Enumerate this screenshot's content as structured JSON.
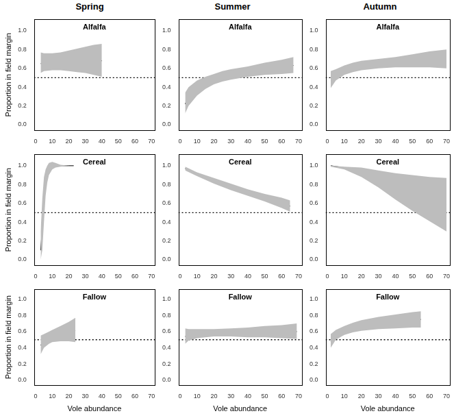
{
  "columns": [
    "Spring",
    "Summer",
    "Autumn"
  ],
  "chart_data": [
    {
      "type": "line",
      "title": "Alfalfa",
      "ylabel": "Proportion in field margin",
      "grid": false,
      "color": "#000000",
      "x": [
        3,
        5,
        10,
        15,
        20,
        25,
        30,
        35,
        40
      ],
      "values": [
        0.65,
        0.66,
        0.67,
        0.67,
        0.675,
        0.68,
        0.68,
        0.68,
        0.68
      ],
      "lower": [
        0.55,
        0.57,
        0.58,
        0.58,
        0.57,
        0.56,
        0.55,
        0.53,
        0.51
      ],
      "upper": [
        0.77,
        0.76,
        0.76,
        0.77,
        0.79,
        0.81,
        0.83,
        0.85,
        0.86
      ],
      "hline": 0.5,
      "xlim": [
        -1,
        72
      ],
      "ylim": [
        -0.06,
        1.12
      ],
      "xticks": [
        0,
        10,
        20,
        30,
        40,
        50,
        60,
        70
      ],
      "yticks": [
        {
          "value": 0,
          "label": "0.0"
        },
        {
          "value": 0.2,
          "label": "0.2"
        },
        {
          "value": 0.4,
          "label": "0.4"
        },
        {
          "value": 0.6,
          "label": "0.6"
        },
        {
          "value": 0.8,
          "label": "0.8"
        },
        {
          "value": 1,
          "label": "1.0"
        }
      ]
    },
    {
      "type": "line",
      "title": "Alfalfa",
      "grid": false,
      "color": "#000000",
      "x": [
        3,
        5,
        10,
        15,
        20,
        25,
        30,
        40,
        50,
        60,
        67
      ],
      "values": [
        0.22,
        0.3,
        0.39,
        0.44,
        0.48,
        0.51,
        0.53,
        0.56,
        0.59,
        0.61,
        0.63
      ],
      "lower": [
        0.12,
        0.2,
        0.31,
        0.38,
        0.43,
        0.46,
        0.48,
        0.51,
        0.53,
        0.54,
        0.55
      ],
      "upper": [
        0.34,
        0.4,
        0.47,
        0.51,
        0.54,
        0.57,
        0.59,
        0.62,
        0.66,
        0.69,
        0.72
      ],
      "hline": 0.5,
      "xlim": [
        -1,
        72
      ],
      "ylim": [
        -0.06,
        1.12
      ],
      "xticks": [
        0,
        10,
        20,
        30,
        40,
        50,
        60,
        70
      ],
      "yticks": [
        {
          "value": 0,
          "label": "0.0"
        },
        {
          "value": 0.2,
          "label": "0.2"
        },
        {
          "value": 0.4,
          "label": "0.4"
        },
        {
          "value": 0.6,
          "label": "0.6"
        },
        {
          "value": 0.8,
          "label": "0.8"
        },
        {
          "value": 1,
          "label": "1.0"
        }
      ]
    },
    {
      "type": "line",
      "title": "Alfalfa",
      "grid": false,
      "color": "#000000",
      "x": [
        2,
        5,
        10,
        15,
        20,
        30,
        40,
        50,
        60,
        70
      ],
      "values": [
        0.48,
        0.53,
        0.58,
        0.61,
        0.63,
        0.65,
        0.67,
        0.68,
        0.69,
        0.7
      ],
      "lower": [
        0.39,
        0.47,
        0.53,
        0.56,
        0.58,
        0.6,
        0.61,
        0.61,
        0.61,
        0.6
      ],
      "upper": [
        0.57,
        0.59,
        0.63,
        0.66,
        0.68,
        0.7,
        0.72,
        0.75,
        0.78,
        0.8
      ],
      "hline": 0.5,
      "xlim": [
        -1,
        72
      ],
      "ylim": [
        -0.06,
        1.12
      ],
      "xticks": [
        0,
        10,
        20,
        30,
        40,
        50,
        60,
        70
      ],
      "yticks": [
        {
          "value": 0,
          "label": "0.0"
        },
        {
          "value": 0.2,
          "label": "0.2"
        },
        {
          "value": 0.4,
          "label": "0.4"
        },
        {
          "value": 0.6,
          "label": "0.6"
        },
        {
          "value": 0.8,
          "label": "0.8"
        },
        {
          "value": 1,
          "label": "1.0"
        }
      ]
    },
    {
      "type": "line",
      "title": "Cereal",
      "ylabel": "Proportion in field margin",
      "grid": false,
      "color": "#000000",
      "x": [
        3,
        4,
        5,
        6,
        7,
        8,
        10,
        12,
        15,
        20,
        23
      ],
      "values": [
        0.1,
        0.35,
        0.65,
        0.82,
        0.9,
        0.95,
        0.98,
        0.99,
        1.0,
        1.0,
        1.0
      ],
      "lower": [
        0.0,
        0.1,
        0.4,
        0.68,
        0.82,
        0.9,
        0.96,
        0.98,
        0.99,
        1.0,
        1.0
      ],
      "upper": [
        0.3,
        0.65,
        0.88,
        0.96,
        1.0,
        1.03,
        1.04,
        1.03,
        1.01,
        1.0,
        1.0
      ],
      "hline": 0.5,
      "xlim": [
        -1,
        72
      ],
      "ylim": [
        -0.06,
        1.12
      ],
      "xticks": [
        0,
        10,
        20,
        30,
        40,
        50,
        60,
        70
      ],
      "yticks": [
        {
          "value": 0,
          "label": "0.0"
        },
        {
          "value": 0.2,
          "label": "0.2"
        },
        {
          "value": 0.4,
          "label": "0.4"
        },
        {
          "value": 0.6,
          "label": "0.6"
        },
        {
          "value": 0.8,
          "label": "0.8"
        },
        {
          "value": 1,
          "label": "1.0"
        }
      ]
    },
    {
      "type": "line",
      "title": "Cereal",
      "grid": false,
      "color": "#000000",
      "x": [
        3,
        10,
        20,
        30,
        40,
        50,
        60,
        65
      ],
      "values": [
        0.97,
        0.91,
        0.84,
        0.77,
        0.71,
        0.66,
        0.6,
        0.57
      ],
      "lower": [
        0.95,
        0.89,
        0.81,
        0.74,
        0.68,
        0.62,
        0.55,
        0.51
      ],
      "upper": [
        0.99,
        0.93,
        0.87,
        0.81,
        0.75,
        0.7,
        0.66,
        0.63
      ],
      "hline": 0.5,
      "xlim": [
        -1,
        72
      ],
      "ylim": [
        -0.06,
        1.12
      ],
      "xticks": [
        0,
        10,
        20,
        30,
        40,
        50,
        60,
        70
      ],
      "yticks": [
        {
          "value": 0,
          "label": "0.0"
        },
        {
          "value": 0.2,
          "label": "0.2"
        },
        {
          "value": 0.4,
          "label": "0.4"
        },
        {
          "value": 0.6,
          "label": "0.6"
        },
        {
          "value": 0.8,
          "label": "0.8"
        },
        {
          "value": 1,
          "label": "1.0"
        }
      ]
    },
    {
      "type": "line",
      "title": "Cereal",
      "grid": false,
      "color": "#000000",
      "x": [
        2,
        10,
        20,
        30,
        40,
        50,
        60,
        70
      ],
      "values": [
        1.0,
        0.98,
        0.93,
        0.86,
        0.78,
        0.71,
        0.64,
        0.59
      ],
      "lower": [
        0.99,
        0.96,
        0.88,
        0.77,
        0.64,
        0.52,
        0.41,
        0.3
      ],
      "upper": [
        1.0,
        0.99,
        0.98,
        0.95,
        0.92,
        0.9,
        0.88,
        0.87
      ],
      "hline": 0.5,
      "xlim": [
        -1,
        72
      ],
      "ylim": [
        -0.06,
        1.12
      ],
      "xticks": [
        0,
        10,
        20,
        30,
        40,
        50,
        60,
        70
      ],
      "yticks": [
        {
          "value": 0,
          "label": "0.0"
        },
        {
          "value": 0.2,
          "label": "0.2"
        },
        {
          "value": 0.4,
          "label": "0.4"
        },
        {
          "value": 0.6,
          "label": "0.6"
        },
        {
          "value": 0.8,
          "label": "0.8"
        },
        {
          "value": 1,
          "label": "1.0"
        }
      ]
    },
    {
      "type": "line",
      "title": "Fallow",
      "ylabel": "Proportion in field margin",
      "xlabel": "Vole abundance",
      "grid": false,
      "color": "#000000",
      "x": [
        3,
        5,
        8,
        10,
        15,
        20,
        24
      ],
      "values": [
        0.43,
        0.49,
        0.53,
        0.55,
        0.58,
        0.6,
        0.61
      ],
      "lower": [
        0.32,
        0.4,
        0.45,
        0.47,
        0.48,
        0.48,
        0.47
      ],
      "upper": [
        0.55,
        0.57,
        0.6,
        0.62,
        0.67,
        0.72,
        0.77
      ],
      "hline": 0.5,
      "xlim": [
        -1,
        72
      ],
      "ylim": [
        -0.06,
        1.12
      ],
      "xticks": [
        0,
        10,
        20,
        30,
        40,
        50,
        60,
        70
      ],
      "yticks": [
        {
          "value": 0,
          "label": "0.0"
        },
        {
          "value": 0.2,
          "label": "0.2"
        },
        {
          "value": 0.4,
          "label": "0.4"
        },
        {
          "value": 0.6,
          "label": "0.6"
        },
        {
          "value": 0.8,
          "label": "0.8"
        },
        {
          "value": 1,
          "label": "1.0"
        }
      ]
    },
    {
      "type": "line",
      "title": "Fallow",
      "xlabel": "Vole abundance",
      "grid": false,
      "color": "#000000",
      "x": [
        3,
        5,
        10,
        20,
        30,
        40,
        50,
        60,
        69
      ],
      "values": [
        0.54,
        0.56,
        0.57,
        0.58,
        0.59,
        0.59,
        0.6,
        0.6,
        0.6
      ],
      "lower": [
        0.45,
        0.49,
        0.52,
        0.54,
        0.54,
        0.53,
        0.53,
        0.52,
        0.51
      ],
      "upper": [
        0.64,
        0.63,
        0.63,
        0.63,
        0.64,
        0.65,
        0.67,
        0.68,
        0.7
      ],
      "hline": 0.5,
      "xlim": [
        -1,
        72
      ],
      "ylim": [
        -0.06,
        1.12
      ],
      "xticks": [
        0,
        10,
        20,
        30,
        40,
        50,
        60,
        70
      ],
      "yticks": [
        {
          "value": 0,
          "label": "0.0"
        },
        {
          "value": 0.2,
          "label": "0.2"
        },
        {
          "value": 0.4,
          "label": "0.4"
        },
        {
          "value": 0.6,
          "label": "0.6"
        },
        {
          "value": 0.8,
          "label": "0.8"
        },
        {
          "value": 1,
          "label": "1.0"
        }
      ]
    },
    {
      "type": "line",
      "title": "Fallow",
      "xlabel": "Vole abundance",
      "grid": false,
      "color": "#000000",
      "x": [
        2,
        5,
        10,
        15,
        20,
        30,
        40,
        50,
        55
      ],
      "values": [
        0.48,
        0.56,
        0.62,
        0.66,
        0.68,
        0.71,
        0.73,
        0.74,
        0.75
      ],
      "lower": [
        0.4,
        0.5,
        0.56,
        0.59,
        0.61,
        0.63,
        0.64,
        0.65,
        0.65
      ],
      "upper": [
        0.57,
        0.62,
        0.67,
        0.71,
        0.74,
        0.78,
        0.81,
        0.84,
        0.85
      ],
      "hline": 0.5,
      "xlim": [
        -1,
        72
      ],
      "ylim": [
        -0.06,
        1.12
      ],
      "xticks": [
        0,
        10,
        20,
        30,
        40,
        50,
        60,
        70
      ],
      "yticks": [
        {
          "value": 0,
          "label": "0.0"
        },
        {
          "value": 0.2,
          "label": "0.2"
        },
        {
          "value": 0.4,
          "label": "0.4"
        },
        {
          "value": 0.6,
          "label": "0.6"
        },
        {
          "value": 0.8,
          "label": "0.8"
        },
        {
          "value": 1,
          "label": "1.0"
        }
      ]
    }
  ]
}
